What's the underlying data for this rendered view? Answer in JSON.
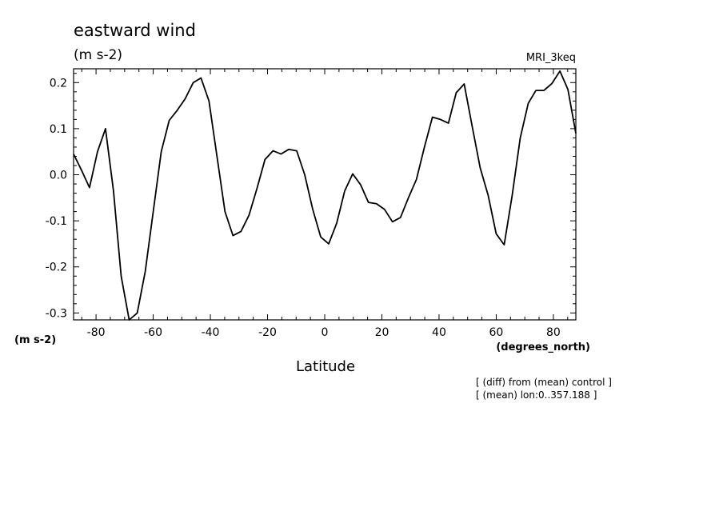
{
  "title": "eastward wind",
  "units": "(m s-2)",
  "model": "MRI_3keq",
  "y_unit_label": "(m s-2)",
  "x_unit_label": "(degrees_north)",
  "xlabel": "Latitude",
  "notes": [
    "[ (diff) from (mean) control ]",
    "[ (mean) lon:0..357.188 ]"
  ],
  "chart_data": {
    "type": "line",
    "title": "eastward wind",
    "xlabel": "Latitude",
    "ylabel": "(m s-2)",
    "xlim": [
      -87.86,
      87.86
    ],
    "ylim": [
      -0.315,
      0.23
    ],
    "x_ticks": [
      -80,
      -60,
      -40,
      -20,
      0,
      20,
      40,
      60,
      80
    ],
    "x_tick_labels": [
      "-80",
      "-60",
      "-40",
      "-20",
      "0",
      "20",
      "40",
      "60",
      "80"
    ],
    "y_ticks": [
      0.2,
      0.1,
      0.0,
      -0.1,
      -0.2,
      -0.3
    ],
    "y_tick_labels": [
      "0.2",
      "0.1",
      "0.0",
      "-0.1",
      "-0.2",
      "-0.3"
    ],
    "grid": false,
    "series": [
      {
        "x": [
          -87.86,
          -85.1,
          -82.3,
          -79.5,
          -76.7,
          -73.9,
          -71.2,
          -68.4,
          -65.6,
          -62.8,
          -60.0,
          -57.2,
          -54.4,
          -51.6,
          -48.8,
          -46.0,
          -43.3,
          -40.5,
          -37.7,
          -34.9,
          -32.1,
          -29.3,
          -26.5,
          -23.7,
          -20.9,
          -18.1,
          -15.3,
          -12.6,
          -9.8,
          -7.0,
          -4.2,
          -1.4,
          1.4,
          4.2,
          7.0,
          9.8,
          12.6,
          15.3,
          18.1,
          20.9,
          23.7,
          26.5,
          29.3,
          32.1,
          34.9,
          37.7,
          40.5,
          43.3,
          46.0,
          48.8,
          51.6,
          54.4,
          57.2,
          60.0,
          62.8,
          65.6,
          68.4,
          71.2,
          73.9,
          76.7,
          79.5,
          82.3,
          85.1,
          87.86
        ],
        "y": [
          0.045,
          0.01,
          -0.028,
          0.05,
          0.1,
          -0.035,
          -0.22,
          -0.315,
          -0.3,
          -0.21,
          -0.08,
          0.05,
          0.118,
          0.14,
          0.165,
          0.2,
          0.21,
          0.16,
          0.04,
          -0.08,
          -0.132,
          -0.123,
          -0.088,
          -0.03,
          0.033,
          0.052,
          0.045,
          0.055,
          0.052,
          0.0,
          -0.075,
          -0.135,
          -0.15,
          -0.105,
          -0.035,
          0.002,
          -0.022,
          -0.06,
          -0.063,
          -0.075,
          -0.102,
          -0.093,
          -0.05,
          -0.01,
          0.06,
          0.125,
          0.12,
          0.112,
          0.178,
          0.197,
          0.105,
          0.015,
          -0.045,
          -0.128,
          -0.152,
          -0.045,
          0.08,
          0.155,
          0.183,
          0.183,
          0.198,
          0.225,
          0.185,
          0.09
        ]
      }
    ]
  }
}
